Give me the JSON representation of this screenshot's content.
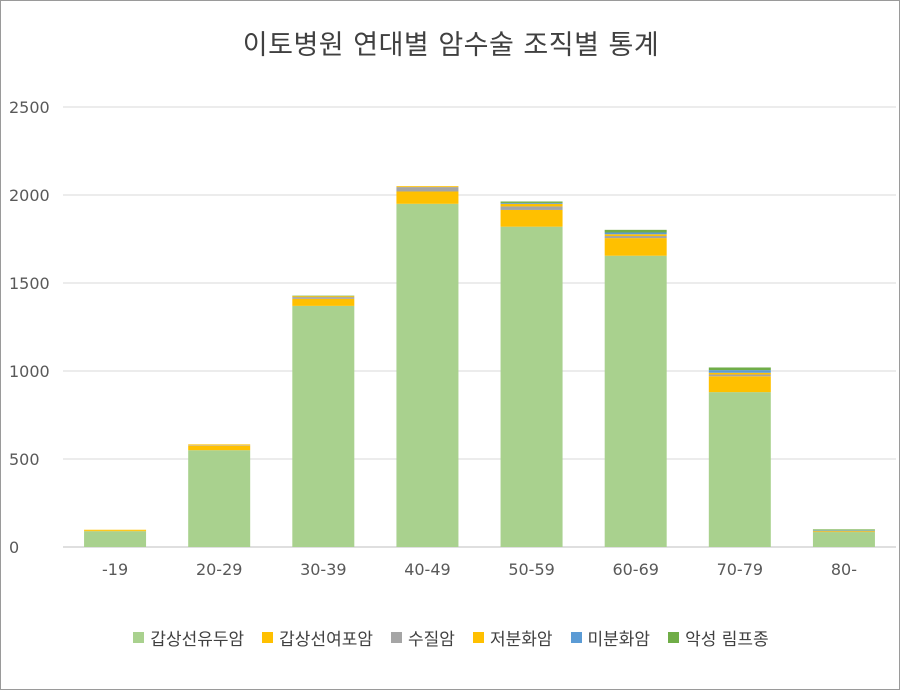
{
  "chart_data": {
    "type": "bar",
    "stacked": true,
    "title": "이토병원 연대별 암수술 조직별 통계",
    "xlabel": "",
    "ylabel": "",
    "ylim": [
      0,
      2500
    ],
    "yticks": [
      0,
      500,
      1000,
      1500,
      2000,
      2500
    ],
    "grid": true,
    "legend_position": "bottom",
    "categories": [
      "-19",
      "20-29",
      "30-39",
      "40-49",
      "50-59",
      "60-69",
      "70-79",
      "80-"
    ],
    "series": [
      {
        "name": "갑상선유두암",
        "color": "#A9D18E",
        "values": [
          90,
          550,
          1370,
          1950,
          1820,
          1655,
          880,
          85
        ]
      },
      {
        "name": "갑상선여포암",
        "color": "#FFC000",
        "values": [
          5,
          25,
          40,
          70,
          95,
          100,
          90,
          3
        ]
      },
      {
        "name": "수질암",
        "color": "#A5A5A5",
        "values": [
          0,
          3,
          10,
          25,
          20,
          12,
          10,
          2
        ]
      },
      {
        "name": "저분화암",
        "color": "#FFC000",
        "values": [
          3,
          5,
          5,
          5,
          15,
          10,
          10,
          2
        ]
      },
      {
        "name": "미분화암",
        "color": "#5B9BD5",
        "values": [
          0,
          0,
          0,
          0,
          5,
          10,
          15,
          3
        ]
      },
      {
        "name": "악성 림프종",
        "color": "#70AD47",
        "values": [
          0,
          0,
          3,
          0,
          8,
          15,
          15,
          5
        ]
      }
    ]
  }
}
